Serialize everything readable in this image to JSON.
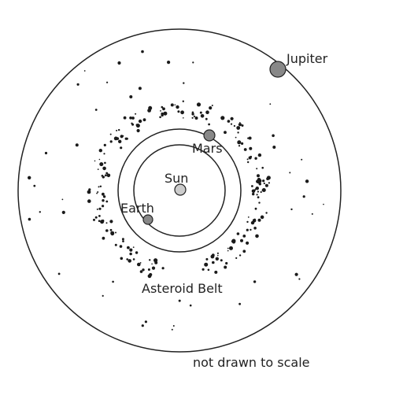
{
  "labels": {
    "sun": "Sun",
    "earth": "Earth",
    "mars": "Mars",
    "jupiter": "Jupiter",
    "belt": "Asteroid Belt",
    "note": "not drawn to scale"
  },
  "colors": {
    "line": "#222222",
    "planet_fill": "#888888",
    "sun_fill": "#cccccc",
    "dot": "#1a1a1a"
  }
}
